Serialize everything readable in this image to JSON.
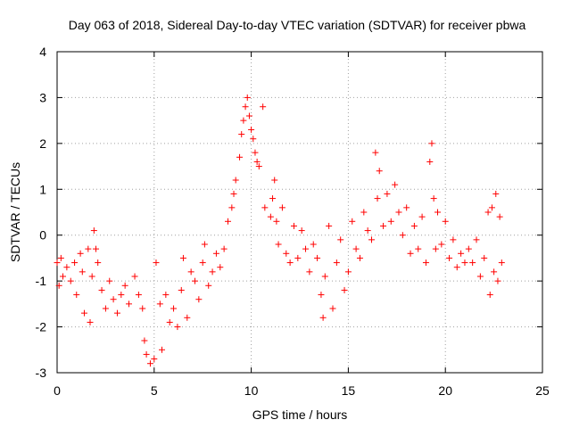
{
  "chart_data": {
    "type": "scatter",
    "title": "Day 063 of 2018, Sidereal Day-to-day VTEC variation (SDTVAR) for receiver pbwa",
    "xlabel": "GPS time / hours",
    "ylabel": "SDTVAR / TECUs",
    "xlim": [
      0,
      25
    ],
    "ylim": [
      -3,
      4
    ],
    "xticks": [
      "0",
      "5",
      "10",
      "15",
      "20",
      "25"
    ],
    "yticks": [
      "-3",
      "-2",
      "-1",
      "0",
      "1",
      "2",
      "3",
      "4"
    ],
    "grid": true,
    "marker": "+",
    "marker_color": "#ff0000",
    "series": [
      {
        "name": "SDTVAR",
        "points": [
          [
            0.0,
            -0.6
          ],
          [
            0.1,
            -1.1
          ],
          [
            0.2,
            -0.5
          ],
          [
            0.3,
            -0.9
          ],
          [
            0.5,
            -0.7
          ],
          [
            0.7,
            -1.0
          ],
          [
            0.9,
            -0.6
          ],
          [
            1.0,
            -1.3
          ],
          [
            1.2,
            -0.4
          ],
          [
            1.3,
            -0.8
          ],
          [
            1.4,
            -1.7
          ],
          [
            1.6,
            -0.3
          ],
          [
            1.7,
            -1.9
          ],
          [
            1.8,
            -0.9
          ],
          [
            1.9,
            0.1
          ],
          [
            2.0,
            -0.3
          ],
          [
            2.1,
            -0.6
          ],
          [
            2.3,
            -1.2
          ],
          [
            2.5,
            -1.6
          ],
          [
            2.7,
            -1.0
          ],
          [
            2.9,
            -1.4
          ],
          [
            3.1,
            -1.7
          ],
          [
            3.3,
            -1.3
          ],
          [
            3.5,
            -1.1
          ],
          [
            3.7,
            -1.5
          ],
          [
            4.0,
            -0.9
          ],
          [
            4.2,
            -1.3
          ],
          [
            4.4,
            -1.6
          ],
          [
            4.5,
            -2.3
          ],
          [
            4.6,
            -2.6
          ],
          [
            4.8,
            -2.8
          ],
          [
            5.0,
            -2.7
          ],
          [
            5.1,
            -0.6
          ],
          [
            5.3,
            -1.5
          ],
          [
            5.4,
            -2.5
          ],
          [
            5.6,
            -1.3
          ],
          [
            5.8,
            -1.9
          ],
          [
            6.0,
            -1.6
          ],
          [
            6.2,
            -2.0
          ],
          [
            6.4,
            -1.2
          ],
          [
            6.5,
            -0.5
          ],
          [
            6.7,
            -1.8
          ],
          [
            6.9,
            -0.8
          ],
          [
            7.1,
            -1.0
          ],
          [
            7.3,
            -1.4
          ],
          [
            7.5,
            -0.6
          ],
          [
            7.6,
            -0.2
          ],
          [
            7.8,
            -1.1
          ],
          [
            8.0,
            -0.8
          ],
          [
            8.2,
            -0.4
          ],
          [
            8.4,
            -0.7
          ],
          [
            8.6,
            -0.3
          ],
          [
            8.8,
            0.3
          ],
          [
            9.0,
            0.6
          ],
          [
            9.1,
            0.9
          ],
          [
            9.2,
            1.2
          ],
          [
            9.4,
            1.7
          ],
          [
            9.5,
            2.2
          ],
          [
            9.6,
            2.5
          ],
          [
            9.7,
            2.8
          ],
          [
            9.8,
            3.0
          ],
          [
            9.9,
            2.6
          ],
          [
            10.0,
            2.3
          ],
          [
            10.1,
            2.1
          ],
          [
            10.2,
            1.8
          ],
          [
            10.3,
            1.6
          ],
          [
            10.4,
            1.5
          ],
          [
            10.6,
            2.8
          ],
          [
            10.7,
            0.6
          ],
          [
            11.0,
            0.4
          ],
          [
            11.1,
            0.8
          ],
          [
            11.2,
            1.2
          ],
          [
            11.3,
            0.3
          ],
          [
            11.4,
            -0.2
          ],
          [
            11.6,
            0.6
          ],
          [
            11.8,
            -0.4
          ],
          [
            12.0,
            -0.6
          ],
          [
            12.2,
            0.2
          ],
          [
            12.4,
            -0.5
          ],
          [
            12.6,
            0.1
          ],
          [
            12.8,
            -0.3
          ],
          [
            13.0,
            -0.8
          ],
          [
            13.2,
            -0.2
          ],
          [
            13.4,
            -0.5
          ],
          [
            13.6,
            -1.3
          ],
          [
            13.7,
            -1.8
          ],
          [
            13.8,
            -0.9
          ],
          [
            14.0,
            0.2
          ],
          [
            14.2,
            -1.6
          ],
          [
            14.4,
            -0.6
          ],
          [
            14.6,
            -0.1
          ],
          [
            14.8,
            -1.2
          ],
          [
            15.0,
            -0.8
          ],
          [
            15.2,
            0.3
          ],
          [
            15.4,
            -0.3
          ],
          [
            15.6,
            -0.5
          ],
          [
            15.8,
            0.5
          ],
          [
            16.0,
            0.1
          ],
          [
            16.2,
            -0.1
          ],
          [
            16.4,
            1.8
          ],
          [
            16.5,
            0.8
          ],
          [
            16.6,
            1.4
          ],
          [
            16.8,
            0.2
          ],
          [
            17.0,
            0.9
          ],
          [
            17.2,
            0.3
          ],
          [
            17.4,
            1.1
          ],
          [
            17.6,
            0.5
          ],
          [
            17.8,
            0.0
          ],
          [
            18.0,
            0.6
          ],
          [
            18.2,
            -0.4
          ],
          [
            18.4,
            0.2
          ],
          [
            18.6,
            -0.3
          ],
          [
            18.8,
            0.4
          ],
          [
            19.0,
            -0.6
          ],
          [
            19.2,
            1.6
          ],
          [
            19.3,
            2.0
          ],
          [
            19.4,
            0.8
          ],
          [
            19.5,
            -0.3
          ],
          [
            19.6,
            0.5
          ],
          [
            19.8,
            -0.2
          ],
          [
            20.0,
            0.3
          ],
          [
            20.2,
            -0.5
          ],
          [
            20.4,
            -0.1
          ],
          [
            20.6,
            -0.7
          ],
          [
            20.8,
            -0.4
          ],
          [
            21.0,
            -0.6
          ],
          [
            21.2,
            -0.3
          ],
          [
            21.4,
            -0.6
          ],
          [
            21.6,
            -0.1
          ],
          [
            21.8,
            -0.9
          ],
          [
            22.0,
            -0.5
          ],
          [
            22.2,
            0.5
          ],
          [
            22.3,
            -1.3
          ],
          [
            22.4,
            0.6
          ],
          [
            22.5,
            -0.8
          ],
          [
            22.6,
            0.9
          ],
          [
            22.7,
            -1.0
          ],
          [
            22.8,
            0.4
          ],
          [
            22.9,
            -0.6
          ]
        ]
      }
    ]
  }
}
